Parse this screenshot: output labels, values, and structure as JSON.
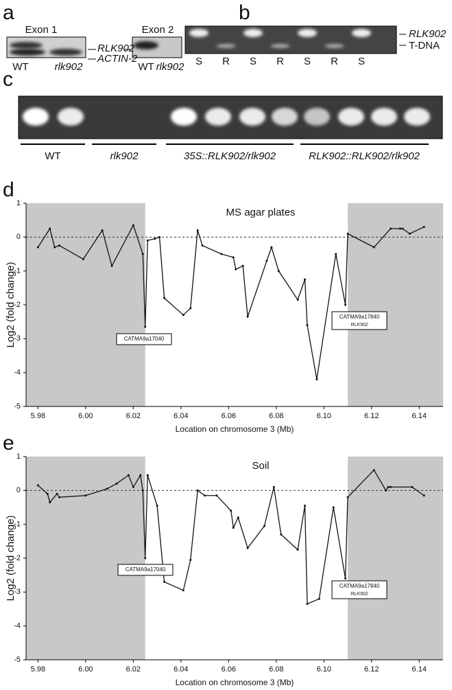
{
  "gels": {
    "a": {
      "letter": "a",
      "exon1": "Exon 1",
      "exon2": "Exon 2",
      "band_top": "RLK902",
      "band_bottom": "ACTIN-2",
      "lanes": [
        "WT",
        "rlk902",
        "WT",
        "rlk902"
      ]
    },
    "b": {
      "letter": "b",
      "band_top": "RLK902",
      "band_bottom": "T-DNA",
      "lanes": [
        "S",
        "R",
        "S",
        "R",
        "S",
        "R",
        "S"
      ]
    },
    "c": {
      "letter": "c",
      "groups": [
        "WT",
        "rlk902",
        "35S::RLK902/rlk902",
        "RLK902::RLK902/rlk902"
      ]
    }
  },
  "chart_data": [
    {
      "type": "line",
      "letter": "d",
      "title": "MS agar plates",
      "y_label": "Log2 (fold change)",
      "x_label": "Location on chromosome 3 (Mb)",
      "annotations": [
        {
          "text": "CATMA9a17040"
        },
        {
          "text": "CATMA9a17840",
          "subtext": "RLK902"
        }
      ],
      "xlim": [
        5.975,
        6.15
      ],
      "xticks": [
        {
          "value": 5.98,
          "label": "5.98"
        },
        {
          "value": 6.0,
          "label": "6.00"
        },
        {
          "value": 6.02,
          "label": "6.02"
        },
        {
          "value": 6.04,
          "label": "6.04"
        },
        {
          "value": 6.06,
          "label": "6.06"
        },
        {
          "value": 6.08,
          "label": "6.08"
        },
        {
          "value": 6.1,
          "label": "6.10"
        },
        {
          "value": 6.12,
          "label": "6.12"
        },
        {
          "value": 6.14,
          "label": "6.14"
        }
      ],
      "ylim": [
        -5,
        1
      ],
      "yticks": [
        1,
        0,
        -1,
        -2,
        -3,
        -4,
        -5
      ],
      "reference_line": 0,
      "shaded_x": [
        [
          5.975,
          6.025
        ],
        [
          6.11,
          6.15
        ]
      ],
      "shade_color": "#c8c8c8",
      "series": [
        {
          "color": "#111111",
          "x": [
            5.98,
            5.985,
            5.987,
            5.989,
            5.999,
            6.007,
            6.011,
            6.02,
            6.024,
            6.025,
            6.026,
            6.029,
            6.031,
            6.033,
            6.041,
            6.044,
            6.047,
            6.049,
            6.057,
            6.062,
            6.063,
            6.066,
            6.068,
            6.076,
            6.078,
            6.081,
            6.089,
            6.092,
            6.093,
            6.097,
            6.105,
            6.109,
            6.11,
            6.121,
            6.128,
            6.132,
            6.133,
            6.136,
            6.142
          ],
          "values": [
            -0.3,
            0.25,
            -0.3,
            -0.25,
            -0.65,
            0.2,
            -0.85,
            0.35,
            -0.5,
            -2.65,
            -0.1,
            -0.05,
            0.0,
            -1.8,
            -2.3,
            -2.1,
            0.2,
            -0.25,
            -0.5,
            -0.6,
            -0.95,
            -0.85,
            -2.35,
            -0.7,
            -0.3,
            -1.0,
            -1.85,
            -1.25,
            -2.6,
            -4.2,
            -0.5,
            -2.0,
            0.1,
            -0.3,
            0.25,
            0.25,
            0.25,
            0.1,
            0.3
          ]
        }
      ]
    },
    {
      "type": "line",
      "letter": "e",
      "title": "Soil",
      "y_label": "Log2 (fold change)",
      "x_label": "Location on chromosome 3 (Mb)",
      "annotations": [
        {
          "text": "CATMA9a17040"
        },
        {
          "text": "CATMA9a17840",
          "subtext": "RLK902"
        }
      ],
      "xlim": [
        5.975,
        6.15
      ],
      "xticks": [
        {
          "value": 5.98,
          "label": "5.98"
        },
        {
          "value": 6.0,
          "label": "6.00"
        },
        {
          "value": 6.02,
          "label": "6.02"
        },
        {
          "value": 6.04,
          "label": "6.04"
        },
        {
          "value": 6.06,
          "label": "6.06"
        },
        {
          "value": 6.08,
          "label": "6.08"
        },
        {
          "value": 6.1,
          "label": "6.10"
        },
        {
          "value": 6.12,
          "label": "6.12"
        },
        {
          "value": 6.14,
          "label": "6.14"
        }
      ],
      "ylim": [
        -5,
        1
      ],
      "yticks": [
        1,
        0,
        -1,
        -2,
        -3,
        -4,
        -5
      ],
      "reference_line": 0,
      "shaded_x": [
        [
          5.975,
          6.025
        ],
        [
          6.11,
          6.15
        ]
      ],
      "shade_color": "#c8c8c8",
      "series": [
        {
          "color": "#111111",
          "x": [
            5.98,
            5.984,
            5.985,
            5.988,
            5.989,
            6.0,
            6.009,
            6.013,
            6.018,
            6.02,
            6.023,
            6.024,
            6.025,
            6.026,
            6.03,
            6.033,
            6.041,
            6.044,
            6.047,
            6.05,
            6.055,
            6.061,
            6.062,
            6.064,
            6.068,
            6.075,
            6.079,
            6.082,
            6.089,
            6.092,
            6.093,
            6.098,
            6.104,
            6.109,
            6.11,
            6.121,
            6.126,
            6.127,
            6.128,
            6.137,
            6.142
          ],
          "values": [
            0.15,
            -0.1,
            -0.35,
            -0.1,
            -0.2,
            -0.15,
            0.05,
            0.2,
            0.45,
            0.1,
            0.45,
            0.0,
            -2.0,
            0.45,
            -0.45,
            -2.7,
            -2.95,
            -2.05,
            0.0,
            -0.15,
            -0.15,
            -0.6,
            -1.1,
            -0.8,
            -1.7,
            -1.05,
            0.1,
            -1.3,
            -1.75,
            -0.45,
            -3.35,
            -3.2,
            -0.5,
            -2.6,
            -0.2,
            0.6,
            0.0,
            0.1,
            0.1,
            0.1,
            -0.15
          ]
        }
      ]
    }
  ]
}
